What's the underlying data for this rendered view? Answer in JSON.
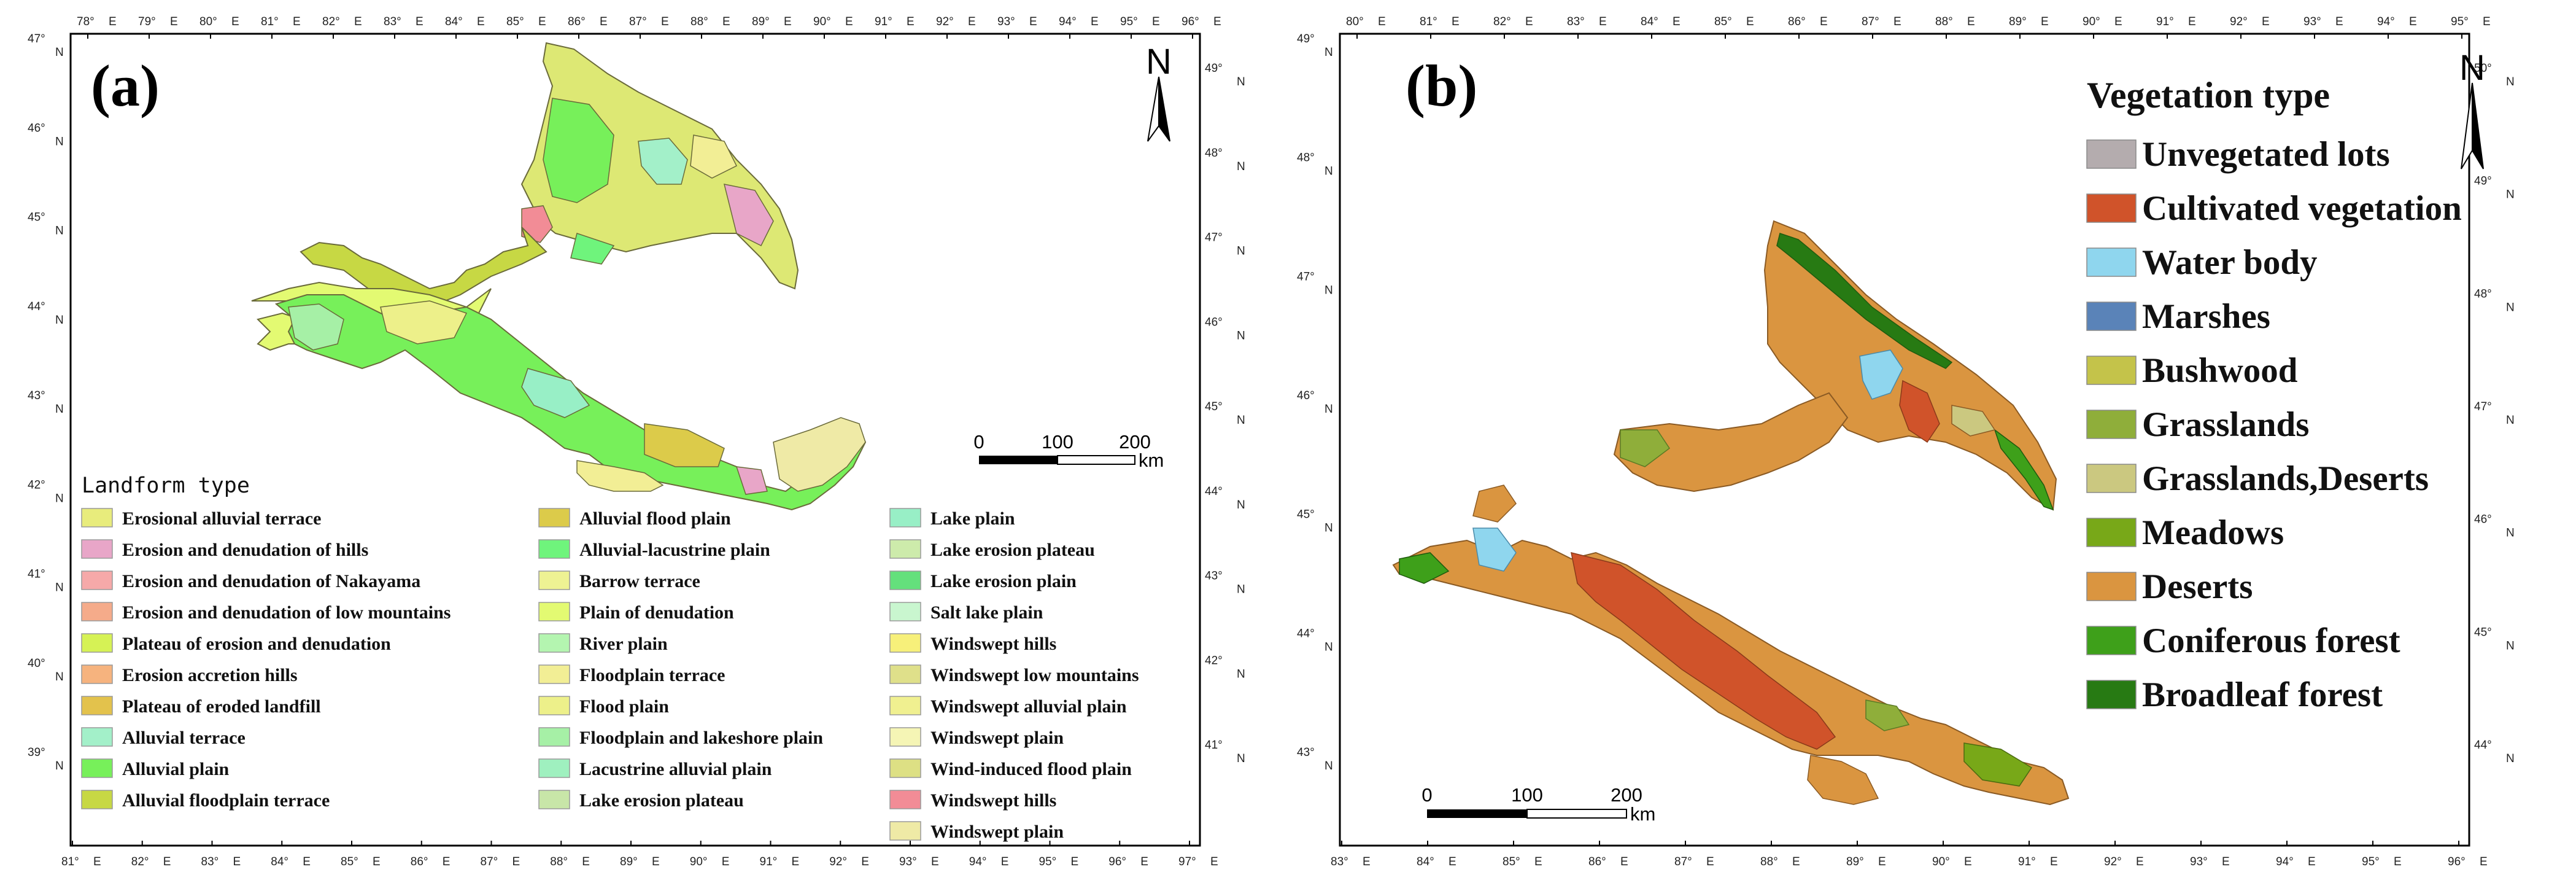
{
  "panel_a": {
    "label": "(a)",
    "legend_title": "Landform type",
    "north": "N",
    "scale": {
      "t0": "0",
      "t1": "100",
      "t2": "200",
      "unit": "km"
    },
    "ticks_top": [
      "78°",
      "79°",
      "80°",
      "81°",
      "82°",
      "83°",
      "84°",
      "85°",
      "86°",
      "87°",
      "88°",
      "89°",
      "90°",
      "91°",
      "92°",
      "93°",
      "94°",
      "95°",
      "96°"
    ],
    "ticks_bottom": [
      "81°",
      "82°",
      "83°",
      "84°",
      "85°",
      "86°",
      "87°",
      "88°",
      "89°",
      "90°",
      "91°",
      "92°",
      "93°",
      "94°",
      "95°",
      "96°",
      "97°"
    ],
    "ticks_left": [
      "47°",
      "46°",
      "45°",
      "44°",
      "43°",
      "42°",
      "41°",
      "40°",
      "39°"
    ],
    "ticks_right": [
      "49°",
      "48°",
      "47°",
      "46°",
      "45°",
      "44°",
      "43°",
      "42°",
      "41°"
    ],
    "ew_suffix": "E",
    "ns_suffix": "N",
    "legend": [
      {
        "label": "Erosional alluvial terrace",
        "color": "#e8ec7c"
      },
      {
        "label": "Erosion and denudation of hills",
        "color": "#e8a6c8"
      },
      {
        "label": "Erosion and denudation of Nakayama",
        "color": "#f6a9a9"
      },
      {
        "label": "Erosion and denudation of low mountains",
        "color": "#f5ab8a"
      },
      {
        "label": "Plateau of erosion and denudation",
        "color": "#d6f255"
      },
      {
        "label": "Erosion accretion hills",
        "color": "#f6b37e"
      },
      {
        "label": "Plateau of eroded landfill",
        "color": "#e3c24c"
      },
      {
        "label": "Alluvial terrace",
        "color": "#a3f0c9"
      },
      {
        "label": "Alluvial plain",
        "color": "#77f05a"
      },
      {
        "label": "Alluvial floodplain terrace",
        "color": "#c7d844"
      },
      {
        "label": "Alluvial flood plain",
        "color": "#dccb4a"
      },
      {
        "label": "Alluvial-lacustrine plain",
        "color": "#6ff47c"
      },
      {
        "label": "Barrow terrace",
        "color": "#eef293"
      },
      {
        "label": "Plain of denudation",
        "color": "#e3fa72"
      },
      {
        "label": "River plain",
        "color": "#b4f5b0"
      },
      {
        "label": "Floodplain terrace",
        "color": "#f2ee95"
      },
      {
        "label": "Flood plain",
        "color": "#edf08a"
      },
      {
        "label": "Floodplain and lakeshore plain",
        "color": "#a6f0a6"
      },
      {
        "label": "Lacustrine alluvial plain",
        "color": "#9ff0bf"
      },
      {
        "label": "Lake erosion plateau",
        "color": "#c8e6a8"
      },
      {
        "label": "Lake plain",
        "color": "#98efc6"
      },
      {
        "label": "Lake erosion plateau",
        "color": "#cdebab"
      },
      {
        "label": "Lake erosion plain",
        "color": "#64e07c"
      },
      {
        "label": "Salt lake plain",
        "color": "#c9f6cf"
      },
      {
        "label": "Windswept hills",
        "color": "#f7f07a"
      },
      {
        "label": "Windswept low mountains",
        "color": "#dfe08a"
      },
      {
        "label": "Windswept alluvial plain",
        "color": "#f0f090"
      },
      {
        "label": "Windswept plain",
        "color": "#f5f5b5"
      },
      {
        "label": "Wind-induced flood plain",
        "color": "#dde084"
      },
      {
        "label": "Windswept hills",
        "color": "#f28c96"
      },
      {
        "label": "Windswept plain",
        "color": "#efeaa6"
      }
    ]
  },
  "panel_b": {
    "label": "(b)",
    "legend_title": "Vegetation type",
    "north": "N",
    "scale": {
      "t0": "0",
      "t1": "100",
      "t2": "200",
      "unit": "km"
    },
    "ticks_top": [
      "80°",
      "81°",
      "82°",
      "83°",
      "84°",
      "85°",
      "86°",
      "87°",
      "88°",
      "89°",
      "90°",
      "91°",
      "92°",
      "93°",
      "94°",
      "95°"
    ],
    "ticks_bottom": [
      "83°",
      "84°",
      "85°",
      "86°",
      "87°",
      "88°",
      "89°",
      "90°",
      "91°",
      "92°",
      "93°",
      "94°",
      "95°",
      "96°"
    ],
    "ticks_left": [
      "49°",
      "48°",
      "47°",
      "46°",
      "45°",
      "44°",
      "43°"
    ],
    "ticks_right": [
      "50°",
      "49°",
      "48°",
      "47°",
      "46°",
      "45°",
      "44°"
    ],
    "ew_suffix": "E",
    "ns_suffix": "N",
    "legend": [
      {
        "label": "Unvegetated lots",
        "color": "#b4acae"
      },
      {
        "label": "Cultivated vegetation",
        "color": "#d0532a"
      },
      {
        "label": "Water body",
        "color": "#8fd6ee"
      },
      {
        "label": "Marshes",
        "color": "#5a83b8"
      },
      {
        "label": "Bushwood",
        "color": "#c4c34a"
      },
      {
        "label": "Grasslands",
        "color": "#8fae3a"
      },
      {
        "label": "Grasslands,Deserts",
        "color": "#cbc880"
      },
      {
        "label": "Meadows",
        "color": "#78a818"
      },
      {
        "label": "Deserts",
        "color": "#da9540"
      },
      {
        "label": "Coniferous forest",
        "color": "#3ea01a"
      },
      {
        "label": "Broadleaf forest",
        "color": "#277a13"
      }
    ]
  }
}
